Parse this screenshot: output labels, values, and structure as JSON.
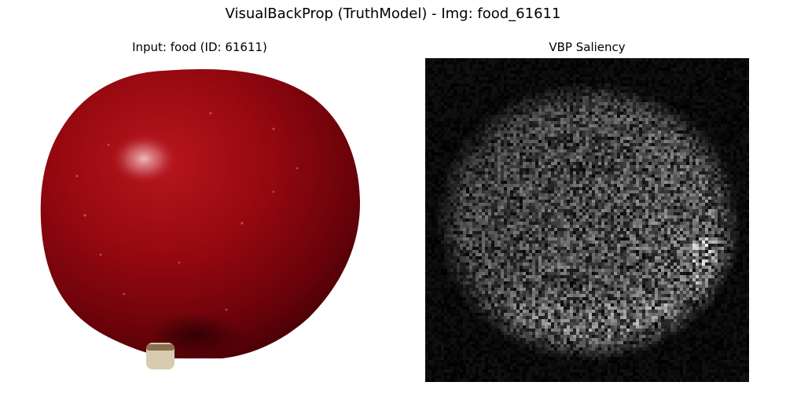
{
  "figure": {
    "title": "VisualBackProp (TruthModel) - Img: food_61611"
  },
  "panels": {
    "input": {
      "title": "Input: food (ID: 61611)",
      "content": "photograph of a red apple on a white background"
    },
    "saliency": {
      "title": "VBP Saliency",
      "content": "grayscale saliency noise map with an apple-shaped bright region on black",
      "colormap": "gray"
    }
  },
  "colors": {
    "apple_dark": "#5a0208",
    "apple_mid": "#8c0a12",
    "apple_light": "#b01a20",
    "highlight": "#e9b0b4",
    "stem": "#d8ccb0",
    "background": "#ffffff",
    "saliency_bg": "#000000"
  }
}
